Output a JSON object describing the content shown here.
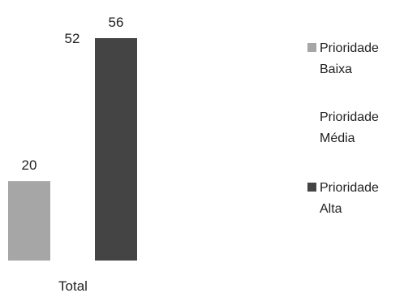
{
  "chart_data": {
    "type": "bar",
    "categories": [
      "Total"
    ],
    "series": [
      {
        "name": "Prioridade Baixa",
        "values": [
          20
        ],
        "color": "#a6a6a6",
        "data_label": "20"
      },
      {
        "name": "Prioridade Média",
        "values": [
          52
        ],
        "color": "#ffffff",
        "data_label": "52"
      },
      {
        "name": "Prioridade Alta",
        "values": [
          56
        ],
        "color": "#444444",
        "data_label": "56"
      }
    ],
    "ylim": [
      0,
      56
    ],
    "grid": false,
    "legend_position": "right",
    "legend": [
      {
        "line1": "Prioridade",
        "line2": "Baixa",
        "color": "#a6a6a6",
        "swatch": true
      },
      {
        "line1": "Prioridade",
        "line2": "Média",
        "color": "#ffffff",
        "swatch": false
      },
      {
        "line1": "Prioridade",
        "line2": "Alta",
        "color": "#444444",
        "swatch": true
      }
    ]
  }
}
